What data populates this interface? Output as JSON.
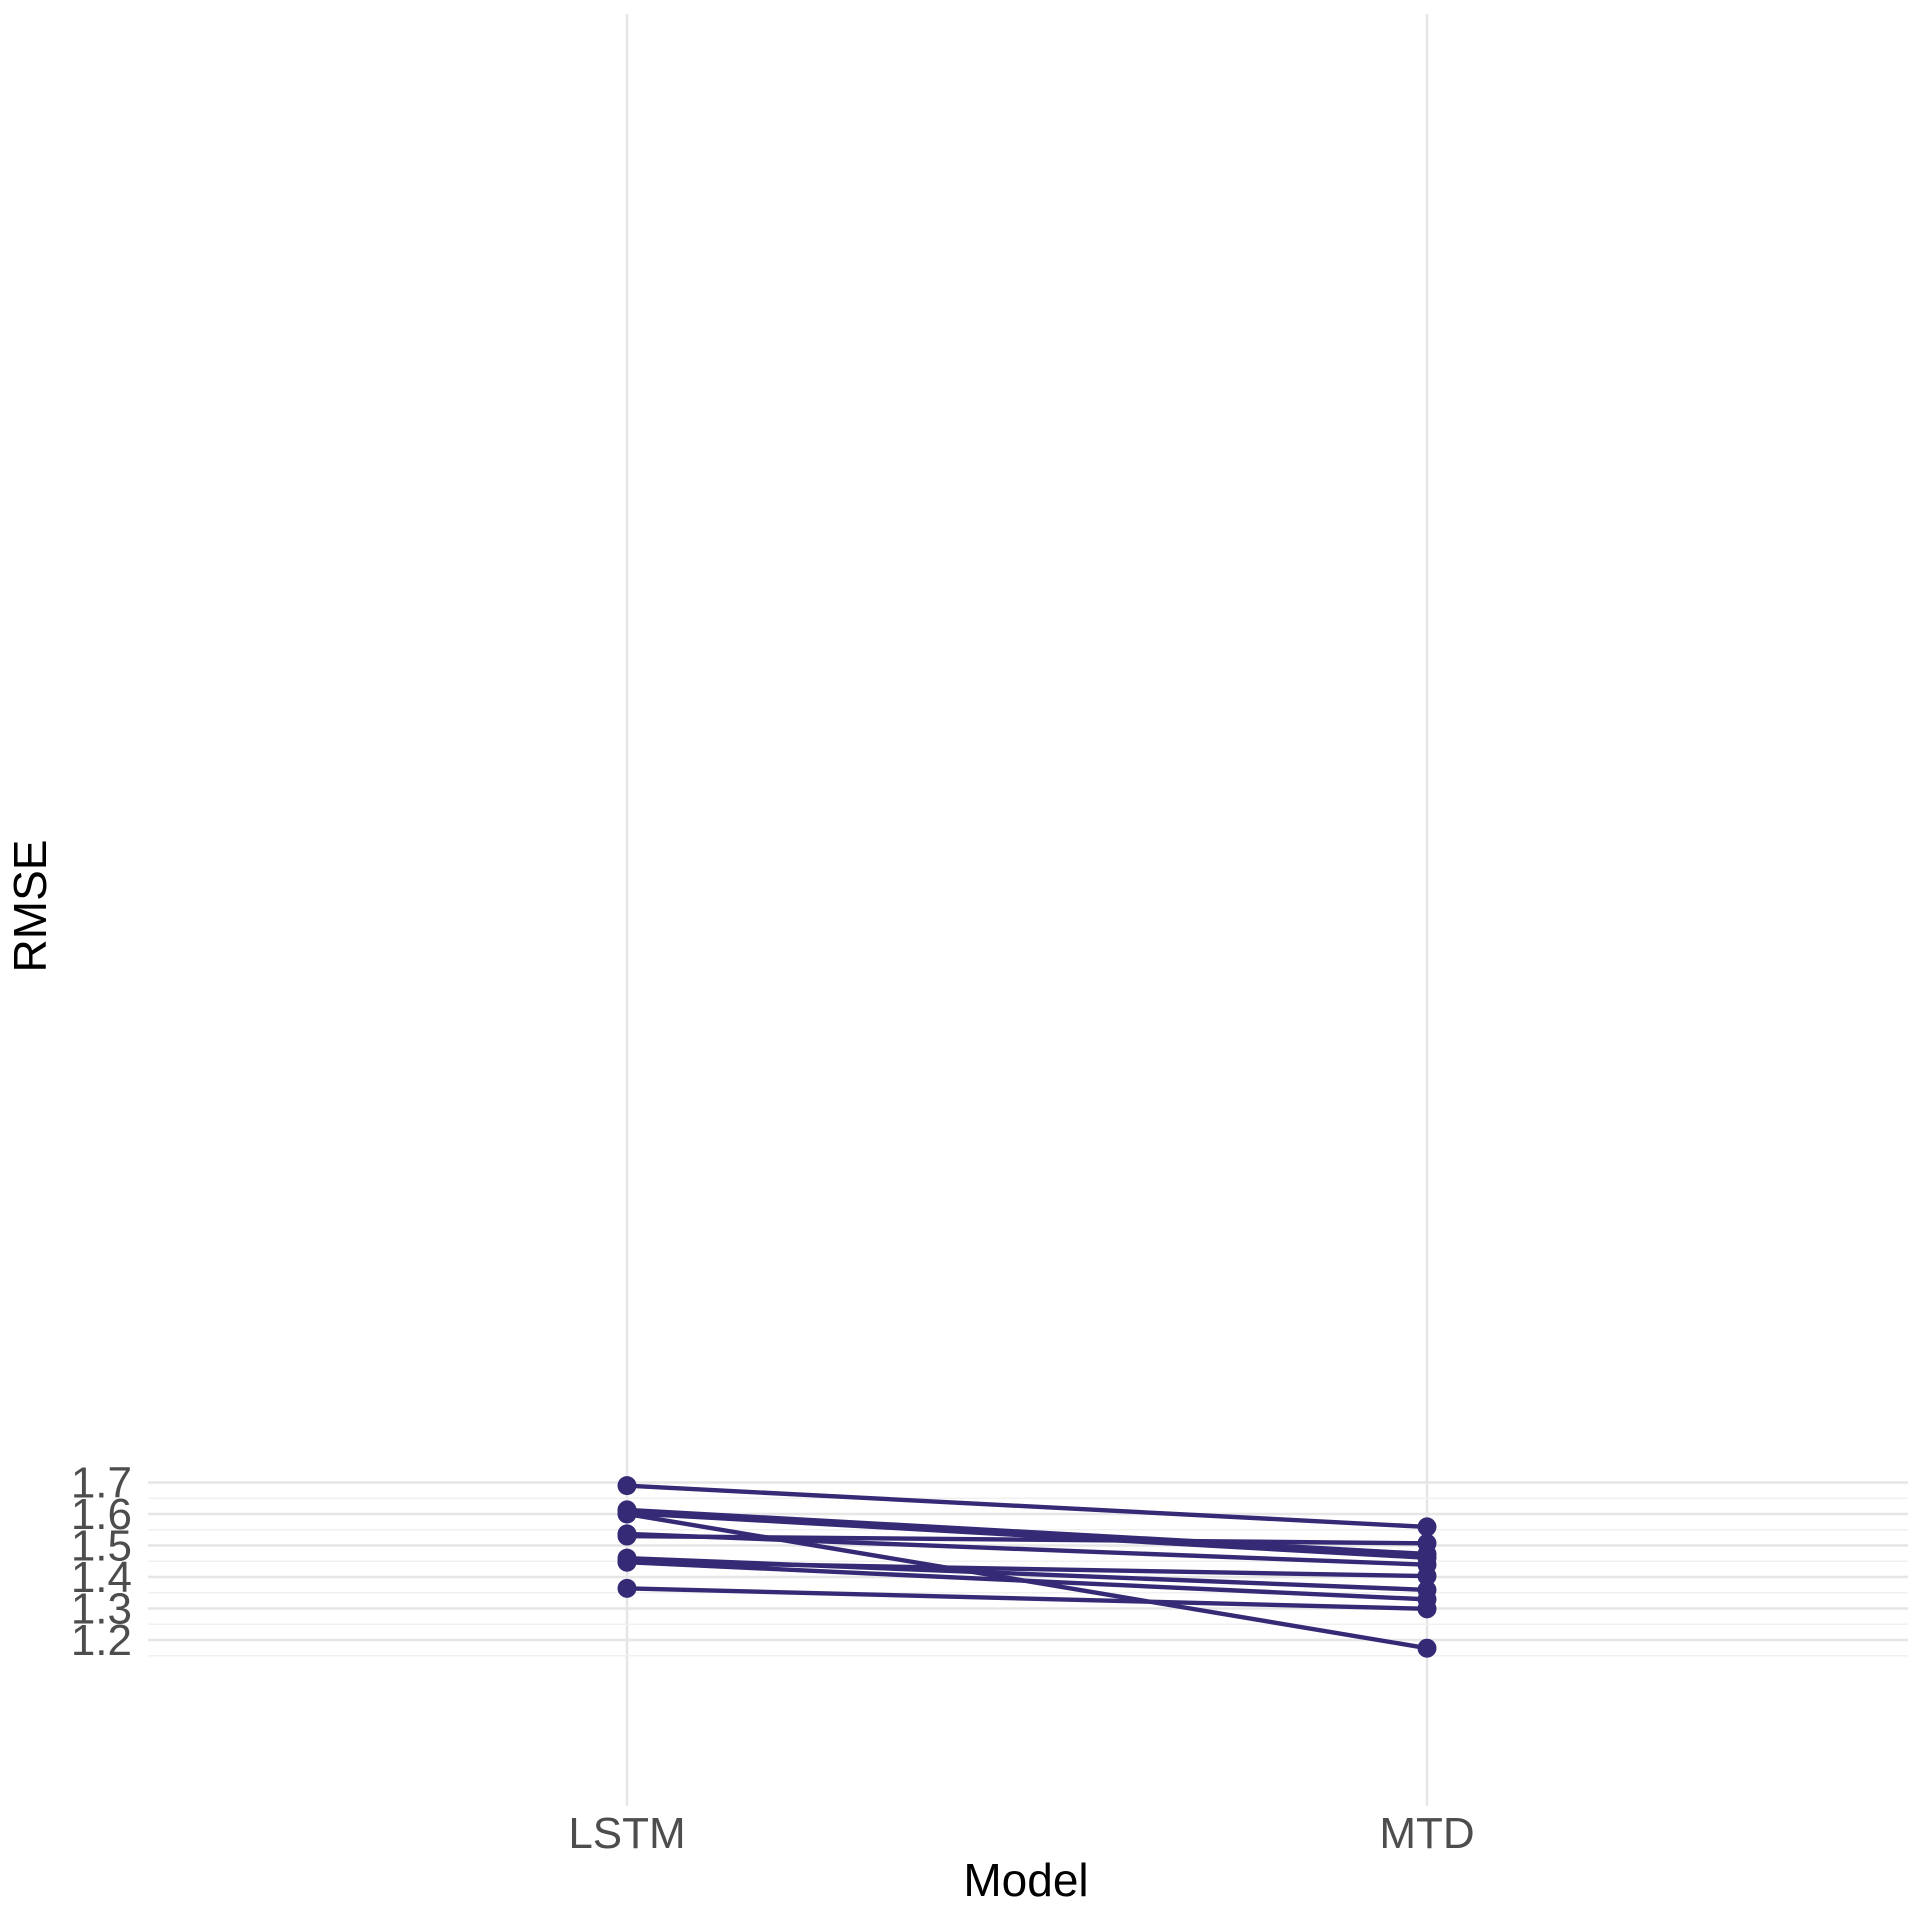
{
  "chart_data": {
    "type": "line",
    "subtype": "paired-slope",
    "title": "",
    "xlabel": "Model",
    "ylabel": "RMSE",
    "categories": [
      "LSTM",
      "MTD"
    ],
    "ylim": [
      1.15,
      1.715
    ],
    "yticks": [
      1.2,
      1.3,
      1.4,
      1.5,
      1.6,
      1.7
    ],
    "grid": true,
    "legend": "none",
    "color": "#352a75",
    "series": [
      {
        "values": [
          1.69,
          1.559
        ]
      },
      {
        "values": [
          1.613,
          1.473
        ]
      },
      {
        "values": [
          1.603,
          1.461
        ]
      },
      {
        "values": [
          1.6,
          1.174
        ]
      },
      {
        "values": [
          1.537,
          1.439
        ]
      },
      {
        "values": [
          1.53,
          1.507
        ]
      },
      {
        "values": [
          1.46,
          1.359
        ]
      },
      {
        "values": [
          1.448,
          1.403
        ]
      },
      {
        "values": [
          1.447,
          1.329
        ]
      },
      {
        "values": [
          1.364,
          1.299
        ]
      }
    ]
  }
}
